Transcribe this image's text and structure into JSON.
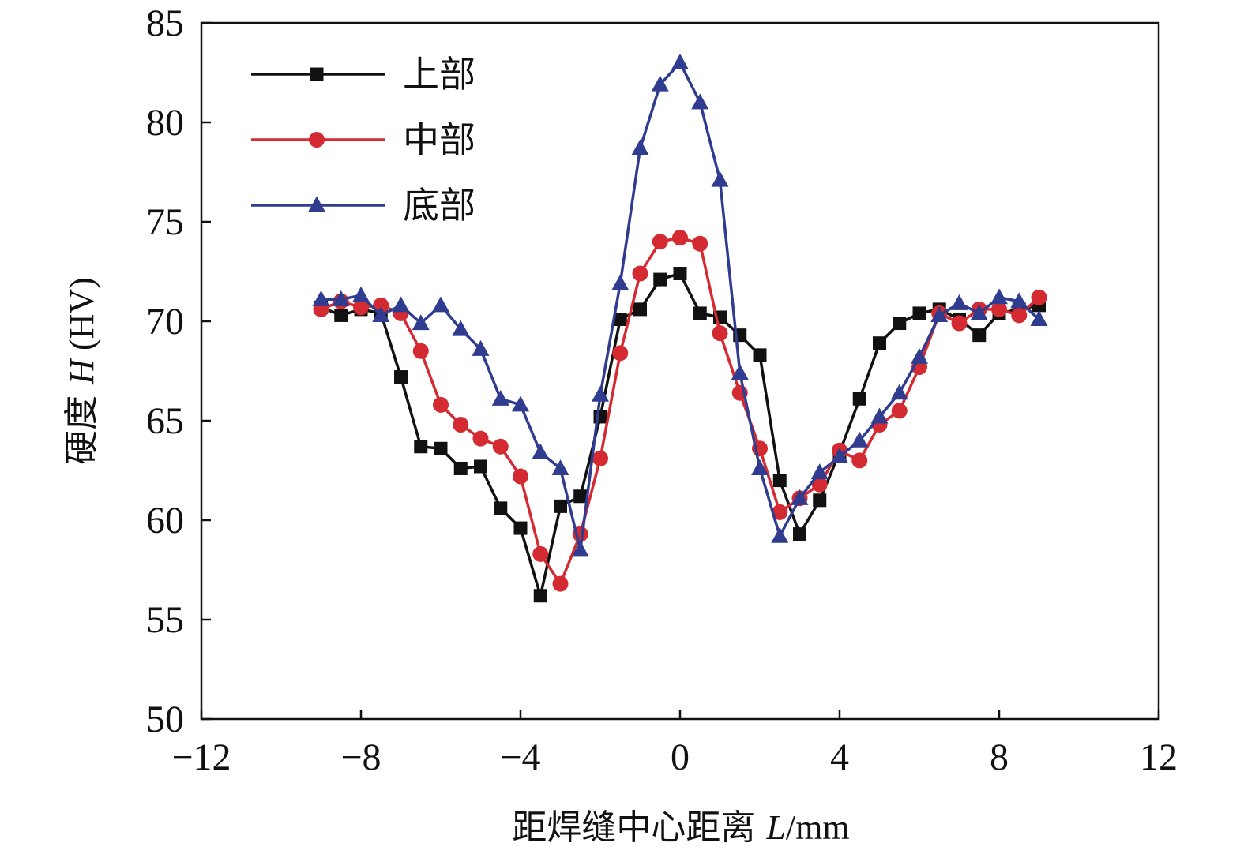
{
  "chart_data": {
    "type": "line",
    "title": "",
    "xlabel": "距焊缝中心距离 L/mm",
    "xlabel_parts": {
      "prefix": "距焊缝中心距离 ",
      "var": "L",
      "suffix": "/mm"
    },
    "ylabel": "硬度 H (HV)",
    "ylabel_parts": {
      "prefix": "硬度 ",
      "var": "H",
      "suffix": " (HV)"
    },
    "xlim": [
      -12,
      12
    ],
    "ylim": [
      50,
      85
    ],
    "xticks": [
      -12,
      -8,
      -4,
      0,
      4,
      8,
      12
    ],
    "xtick_labels": [
      "−12",
      "−8",
      "−4",
      "0",
      "4",
      "8",
      "12"
    ],
    "yticks": [
      50,
      55,
      60,
      65,
      70,
      75,
      80,
      85
    ],
    "ytick_labels": [
      "50",
      "55",
      "60",
      "65",
      "70",
      "75",
      "80",
      "85"
    ],
    "grid": false,
    "legend_position": "top-left",
    "x": [
      -9,
      -8.5,
      -8,
      -7.5,
      -7,
      -6.5,
      -6,
      -5.5,
      -5,
      -4.5,
      -4,
      -3.5,
      -3,
      -2.5,
      -2,
      -1.5,
      -1,
      -0.5,
      0,
      0.5,
      1,
      1.5,
      2,
      2.5,
      3,
      3.5,
      4,
      4.5,
      5,
      5.5,
      6,
      6.5,
      7,
      7.5,
      8,
      8.5,
      9
    ],
    "series": [
      {
        "name": "上部",
        "color": "#111111",
        "marker": "square",
        "values": [
          70.7,
          70.3,
          70.6,
          70.4,
          67.2,
          63.7,
          63.6,
          62.6,
          62.7,
          60.6,
          59.6,
          56.2,
          60.7,
          61.2,
          65.2,
          70.1,
          70.6,
          72.1,
          72.4,
          70.4,
          70.2,
          69.3,
          68.3,
          62.0,
          59.3,
          61.0,
          63.4,
          66.1,
          68.9,
          69.9,
          70.4,
          70.6,
          70.1,
          69.3,
          70.4,
          70.6,
          70.8
        ]
      },
      {
        "name": "中部",
        "color": "#d42a32",
        "marker": "circle",
        "values": [
          70.6,
          71.0,
          70.7,
          70.8,
          70.4,
          68.5,
          65.8,
          64.8,
          64.1,
          63.7,
          62.2,
          58.3,
          56.8,
          59.3,
          63.1,
          68.4,
          72.4,
          74.0,
          74.2,
          73.9,
          69.4,
          66.4,
          63.6,
          60.4,
          61.1,
          61.8,
          63.5,
          63.0,
          64.8,
          65.5,
          67.7,
          70.4,
          69.9,
          70.6,
          70.6,
          70.3,
          71.2
        ]
      },
      {
        "name": "底部",
        "color": "#2f3c8f",
        "marker": "triangle",
        "values": [
          71.1,
          71.1,
          71.3,
          70.3,
          70.8,
          69.9,
          70.8,
          69.6,
          68.6,
          66.1,
          65.8,
          63.4,
          62.6,
          58.5,
          66.3,
          71.9,
          78.7,
          81.9,
          83.0,
          81.0,
          77.1,
          67.4,
          62.6,
          59.2,
          61.1,
          62.4,
          63.2,
          64.0,
          65.2,
          66.4,
          68.2,
          70.3,
          70.9,
          70.4,
          71.2,
          71.0,
          70.1
        ]
      }
    ]
  }
}
